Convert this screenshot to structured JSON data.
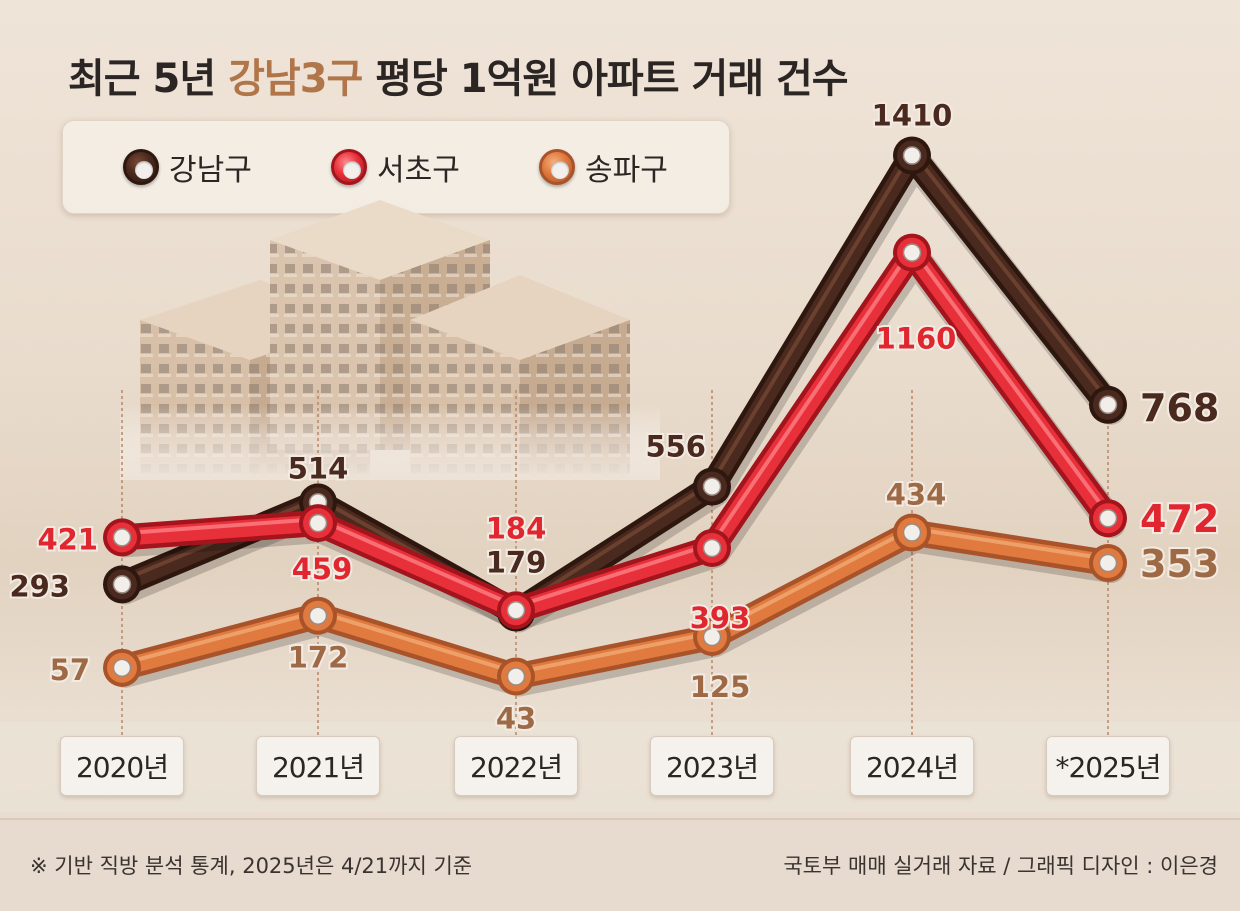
{
  "chart_data": {
    "type": "line",
    "title_parts": [
      "최근 5년 ",
      "강남3구",
      " 평당 1억원 아파트 거래 건수"
    ],
    "categories": [
      "2020년",
      "2021년",
      "2022년",
      "2023년",
      "2024년",
      "*2025년"
    ],
    "series": [
      {
        "name": "강남구",
        "values": [
          293,
          514,
          179,
          556,
          1410,
          768
        ],
        "color": "#4a2a1e",
        "label_color": "#4a2a1e"
      },
      {
        "name": "서초구",
        "values": [
          421,
          459,
          184,
          393,
          1160,
          472
        ],
        "color": "#e8303a",
        "label_color": "#e0262f"
      },
      {
        "name": "송파구",
        "values": [
          57,
          172,
          43,
          125,
          434,
          353
        ],
        "color": "#e07a3e",
        "label_color": "#9e6a45"
      }
    ],
    "legend_position": "top-left"
  },
  "footer": {
    "note": "※ 기반 직방 분석 통계, 2025년은 4/21까지 기준",
    "source": "국토부 매매 실거래 자료 / 그래픽 디자인 : 이은경"
  }
}
